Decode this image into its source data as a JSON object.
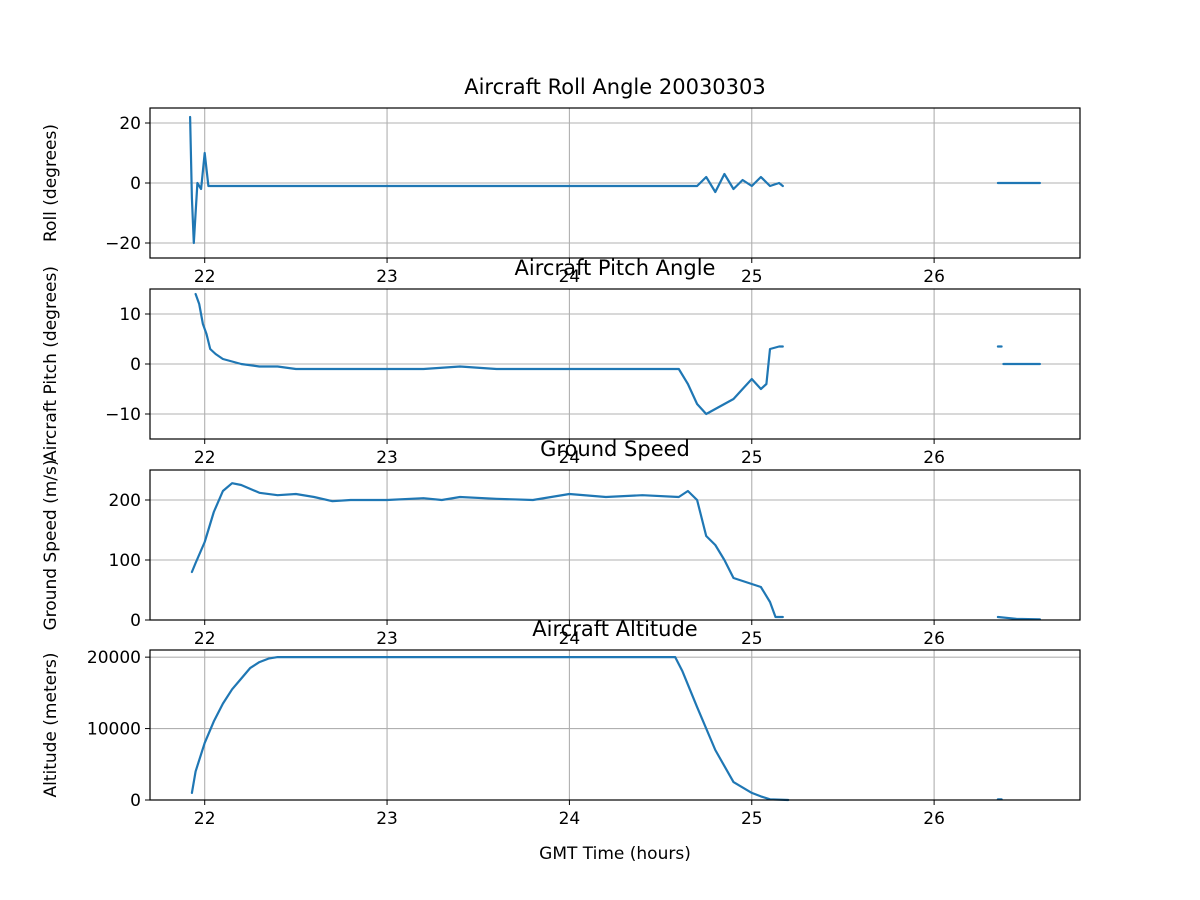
{
  "chart_data": [
    {
      "type": "scatter",
      "title": "Aircraft Roll Angle 20030303",
      "ylabel": "Roll (degrees)",
      "xlabel": "",
      "xlim": [
        21.7,
        26.8
      ],
      "ylim": [
        -25,
        25
      ],
      "xticks": [
        22,
        23,
        24,
        25,
        26
      ],
      "yticks": [
        -20,
        0,
        20
      ],
      "ytick_labels": [
        "−20",
        "0",
        "20"
      ],
      "grid": true,
      "color": "#1f77b4",
      "segments": [
        {
          "x": [
            21.92,
            21.93,
            21.94,
            21.96,
            21.98,
            22.0,
            22.02,
            22.05,
            22.1,
            22.2,
            22.3,
            22.4,
            22.5,
            22.6,
            22.7,
            22.8,
            22.9,
            23.0,
            23.1,
            23.2,
            23.3,
            23.4,
            23.5,
            23.6,
            23.7,
            23.8,
            23.9,
            24.0,
            24.1,
            24.2,
            24.3,
            24.4,
            24.5,
            24.6,
            24.7,
            24.75,
            24.8,
            24.85,
            24.9,
            24.95,
            25.0,
            25.05,
            25.1,
            25.15,
            25.17
          ],
          "y": [
            22,
            -5,
            -20,
            0,
            -2,
            10,
            -1,
            -1,
            -1,
            -1,
            -1,
            -1,
            -1,
            -1,
            -1,
            -1,
            -1,
            -1,
            -1,
            -1,
            -1,
            -1,
            -1,
            -1,
            -1,
            -1,
            -1,
            -1,
            -1,
            -1,
            -1,
            -1,
            -1,
            -1,
            -1,
            2,
            -3,
            3,
            -2,
            1,
            -1,
            2,
            -1,
            0,
            -1
          ]
        },
        {
          "x": [
            26.35,
            26.45,
            26.55,
            26.58
          ],
          "y": [
            0,
            0,
            0,
            0
          ]
        }
      ]
    },
    {
      "type": "scatter",
      "title": "Aircraft Pitch Angle",
      "ylabel": "Aircraft Pitch (degrees)",
      "xlabel": "",
      "xlim": [
        21.7,
        26.8
      ],
      "ylim": [
        -15,
        15
      ],
      "xticks": [
        22,
        23,
        24,
        25,
        26
      ],
      "yticks": [
        -10,
        0,
        10
      ],
      "ytick_labels": [
        "−10",
        "0",
        "10"
      ],
      "grid": true,
      "color": "#1f77b4",
      "segments": [
        {
          "x": [
            21.95,
            21.97,
            21.99,
            22.01,
            22.03,
            22.06,
            22.1,
            22.15,
            22.2,
            22.3,
            22.4,
            22.5,
            22.6,
            22.8,
            23.0,
            23.2,
            23.4,
            23.6,
            23.8,
            24.0,
            24.2,
            24.4,
            24.6,
            24.65,
            24.7,
            24.75,
            24.8,
            24.85,
            24.9,
            24.95,
            25.0,
            25.05,
            25.08,
            25.1,
            25.15,
            25.17
          ],
          "y": [
            14,
            12,
            8,
            6,
            3,
            2,
            1,
            0.5,
            0,
            -0.5,
            -0.5,
            -1,
            -1,
            -1,
            -1,
            -1,
            -0.5,
            -1,
            -1,
            -1,
            -1,
            -1,
            -1,
            -4,
            -8,
            -10,
            -9,
            -8,
            -7,
            -5,
            -3,
            -5,
            -4,
            3,
            3.5,
            3.5
          ]
        },
        {
          "x": [
            26.35,
            26.37
          ],
          "y": [
            3.5,
            3.5
          ]
        },
        {
          "x": [
            26.38,
            26.5,
            26.58
          ],
          "y": [
            0,
            0,
            0
          ]
        }
      ]
    },
    {
      "type": "scatter",
      "title": "Ground Speed",
      "ylabel": "Ground Speed (m/s)",
      "xlabel": "",
      "xlim": [
        21.7,
        26.8
      ],
      "ylim": [
        0,
        250
      ],
      "xticks": [
        22,
        23,
        24,
        25,
        26
      ],
      "yticks": [
        0,
        100,
        200
      ],
      "ytick_labels": [
        "0",
        "100",
        "200"
      ],
      "grid": true,
      "color": "#1f77b4",
      "segments": [
        {
          "x": [
            21.93,
            21.95,
            22.0,
            22.05,
            22.1,
            22.15,
            22.2,
            22.3,
            22.4,
            22.5,
            22.6,
            22.7,
            22.8,
            23.0,
            23.2,
            23.3,
            23.4,
            23.6,
            23.8,
            24.0,
            24.2,
            24.4,
            24.6,
            24.65,
            24.7,
            24.75,
            24.8,
            24.85,
            24.9,
            25.0,
            25.05,
            25.1,
            25.13,
            25.15,
            25.17
          ],
          "y": [
            80,
            95,
            130,
            180,
            215,
            228,
            225,
            212,
            208,
            210,
            205,
            198,
            200,
            200,
            203,
            200,
            205,
            202,
            200,
            210,
            205,
            208,
            205,
            215,
            200,
            140,
            125,
            100,
            70,
            60,
            55,
            30,
            5,
            5,
            5
          ]
        },
        {
          "x": [
            26.35,
            26.45,
            26.58
          ],
          "y": [
            5,
            2,
            1
          ]
        }
      ]
    },
    {
      "type": "scatter",
      "title": "Aircraft Altitude",
      "ylabel": "Altitude (meters)",
      "xlabel": "GMT Time (hours)",
      "xlim": [
        21.7,
        26.8
      ],
      "ylim": [
        0,
        21000
      ],
      "xticks": [
        22,
        23,
        24,
        25,
        26
      ],
      "yticks": [
        0,
        10000,
        20000
      ],
      "ytick_labels": [
        "0",
        "10000",
        "20000"
      ],
      "grid": true,
      "color": "#1f77b4",
      "segments": [
        {
          "x": [
            21.93,
            21.95,
            22.0,
            22.05,
            22.1,
            22.15,
            22.2,
            22.25,
            22.3,
            22.35,
            22.4,
            22.5,
            23.0,
            23.5,
            24.0,
            24.3,
            24.58,
            24.62,
            24.7,
            24.8,
            24.9,
            25.0,
            25.05,
            25.1,
            25.2
          ],
          "y": [
            1000,
            4000,
            8000,
            11000,
            13500,
            15500,
            17000,
            18500,
            19300,
            19800,
            20000,
            20000,
            20000,
            20000,
            20000,
            20000,
            20000,
            18000,
            13000,
            7000,
            2500,
            1000,
            500,
            100,
            0
          ]
        },
        {
          "x": [
            26.35,
            26.37
          ],
          "y": [
            100,
            100
          ]
        }
      ]
    }
  ]
}
